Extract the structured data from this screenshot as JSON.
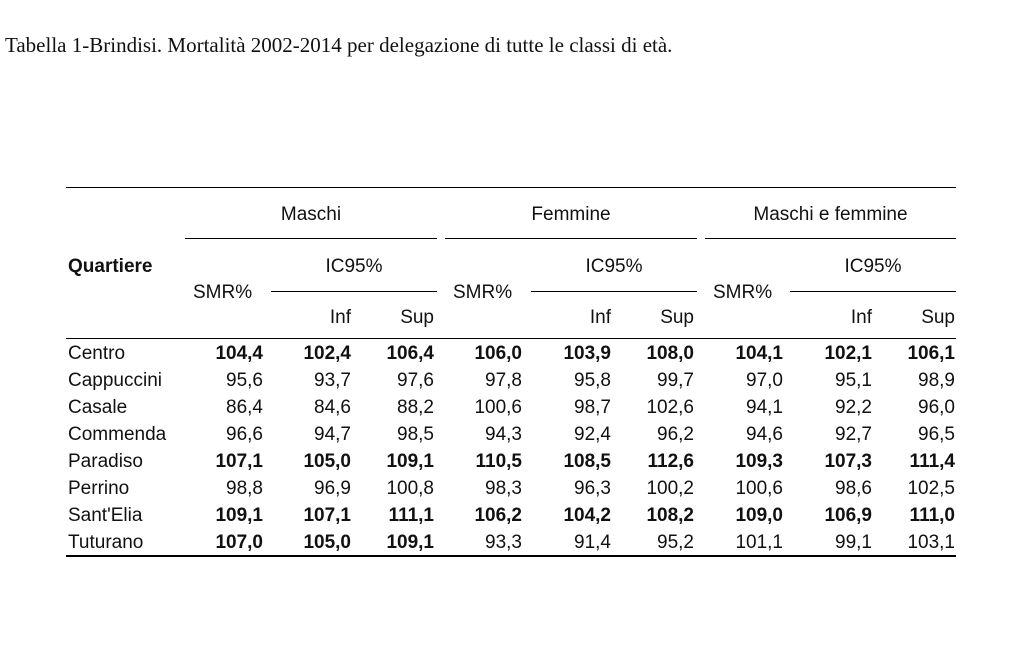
{
  "caption": "Tabella 1-Brindisi. Mortalità 2002-2014 per delegazione di tutte le classi di età.",
  "table": {
    "row_header": "Quartiere",
    "groups": [
      "Maschi",
      "Femmine",
      "Maschi e femmine"
    ],
    "smr_label": "SMR%",
    "ci_label": "IC95%",
    "inf_label": "Inf",
    "sup_label": "Sup",
    "rows": [
      {
        "name": "Centro",
        "values": [
          "104,4",
          "102,4",
          "106,4",
          "106,0",
          "103,9",
          "108,0",
          "104,1",
          "102,1",
          "106,1"
        ],
        "bold": [
          true,
          true,
          true,
          true,
          true,
          true,
          true,
          true,
          true
        ]
      },
      {
        "name": "Cappuccini",
        "values": [
          "95,6",
          "93,7",
          "97,6",
          "97,8",
          "95,8",
          "99,7",
          "97,0",
          "95,1",
          "98,9"
        ],
        "bold": [
          false,
          false,
          false,
          false,
          false,
          false,
          false,
          false,
          false
        ]
      },
      {
        "name": "Casale",
        "values": [
          "86,4",
          "84,6",
          "88,2",
          "100,6",
          "98,7",
          "102,6",
          "94,1",
          "92,2",
          "96,0"
        ],
        "bold": [
          false,
          false,
          false,
          false,
          false,
          false,
          false,
          false,
          false
        ]
      },
      {
        "name": "Commenda",
        "values": [
          "96,6",
          "94,7",
          "98,5",
          "94,3",
          "92,4",
          "96,2",
          "94,6",
          "92,7",
          "96,5"
        ],
        "bold": [
          false,
          false,
          false,
          false,
          false,
          false,
          false,
          false,
          false
        ]
      },
      {
        "name": "Paradiso",
        "values": [
          "107,1",
          "105,0",
          "109,1",
          "110,5",
          "108,5",
          "112,6",
          "109,3",
          "107,3",
          "111,4"
        ],
        "bold": [
          true,
          true,
          true,
          true,
          true,
          true,
          true,
          true,
          true
        ]
      },
      {
        "name": "Perrino",
        "values": [
          "98,8",
          "96,9",
          "100,8",
          "98,3",
          "96,3",
          "100,2",
          "100,6",
          "98,6",
          "102,5"
        ],
        "bold": [
          false,
          false,
          false,
          false,
          false,
          false,
          false,
          false,
          false
        ]
      },
      {
        "name": "Sant'Elia",
        "values": [
          "109,1",
          "107,1",
          "111,1",
          "106,2",
          "104,2",
          "108,2",
          "109,0",
          "106,9",
          "111,0"
        ],
        "bold": [
          true,
          true,
          true,
          true,
          true,
          true,
          true,
          true,
          true
        ]
      },
      {
        "name": "Tuturano",
        "values": [
          "107,0",
          "105,0",
          "109,1",
          "93,3",
          "91,4",
          "95,2",
          "101,1",
          "99,1",
          "103,1"
        ],
        "bold": [
          true,
          true,
          true,
          false,
          false,
          false,
          false,
          false,
          false
        ]
      }
    ]
  }
}
